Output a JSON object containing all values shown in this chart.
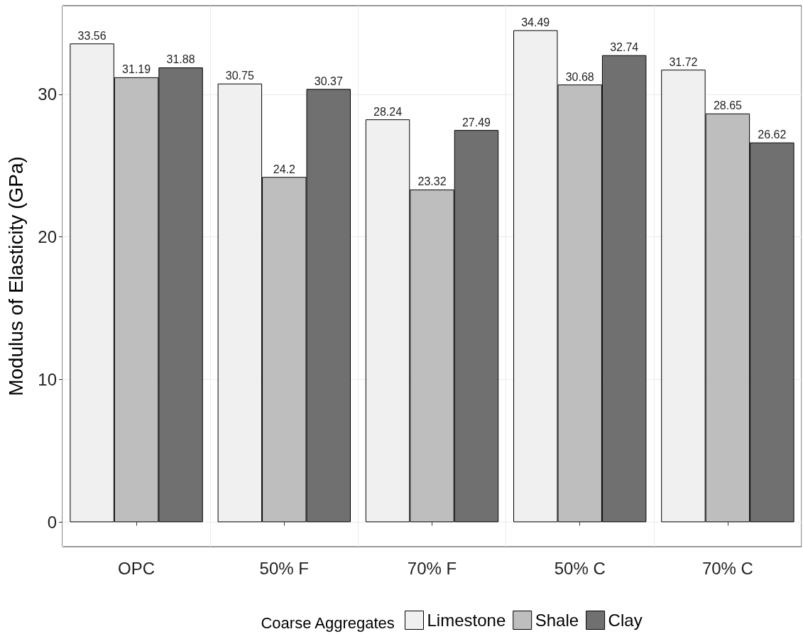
{
  "chart_data": {
    "type": "bar",
    "ylabel": "Modulus of Elasticity (GPa)",
    "legend_title": "Coarse Aggregates",
    "categories": [
      "OPC",
      "50% F",
      "70% F",
      "50% C",
      "70% C"
    ],
    "series": [
      {
        "name": "Limestone",
        "color": "#f0f0f0",
        "values": [
          33.56,
          30.75,
          28.24,
          34.49,
          31.72
        ]
      },
      {
        "name": "Shale",
        "color": "#bebebe",
        "values": [
          31.19,
          24.2,
          23.32,
          30.68,
          28.65
        ]
      },
      {
        "name": "Clay",
        "color": "#707070",
        "values": [
          31.88,
          30.37,
          27.49,
          32.74,
          26.62
        ]
      }
    ],
    "ylim": [
      -1.72,
      36.21
    ],
    "yticks": [
      0,
      10,
      20,
      30
    ],
    "grid": true,
    "legend": "bottom",
    "data_labels": true
  }
}
